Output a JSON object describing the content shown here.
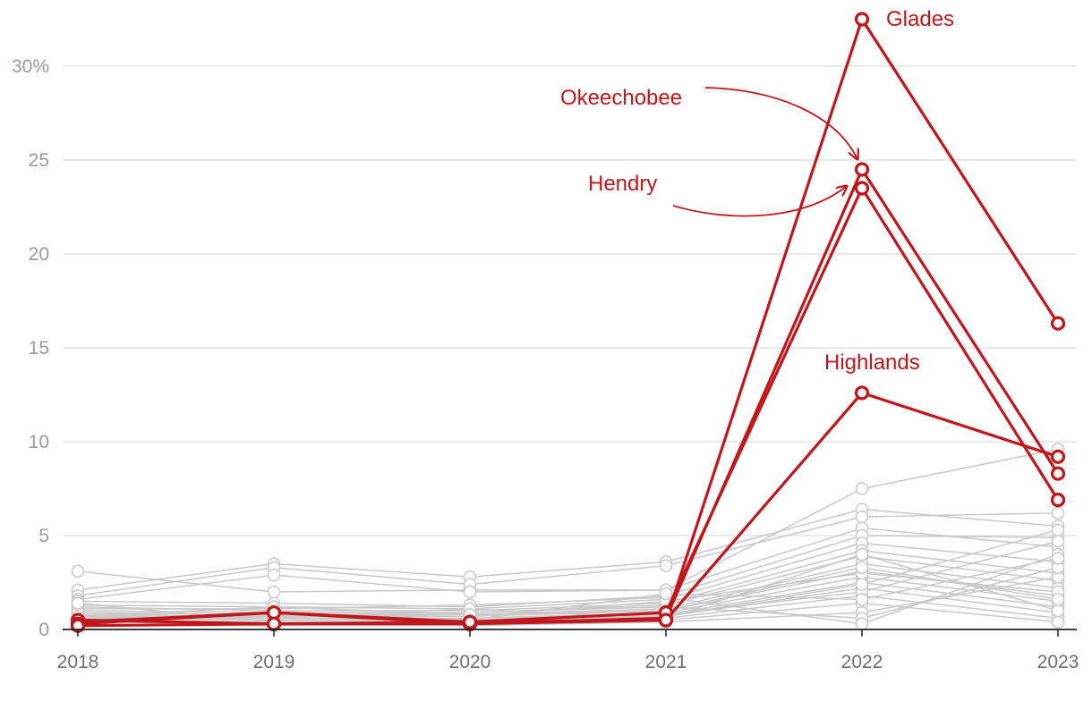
{
  "chart_data": {
    "type": "line",
    "x": [
      "2018",
      "2019",
      "2020",
      "2021",
      "2022",
      "2023"
    ],
    "y_ticks": [
      0,
      5,
      10,
      15,
      20,
      25,
      30
    ],
    "y_top_label": "30%",
    "ylim": [
      0,
      32.5
    ],
    "grid": true,
    "highlight_color": "#c0161c",
    "background_color": "#c8c8c8",
    "highlight_series": [
      {
        "name": "Glades",
        "values": [
          0.4,
          0.9,
          0.3,
          0.5,
          32.5,
          16.3
        ]
      },
      {
        "name": "Okeechobee",
        "values": [
          0.5,
          0.3,
          0.3,
          0.6,
          24.5,
          8.3
        ]
      },
      {
        "name": "Hendry",
        "values": [
          0.3,
          0.9,
          0.4,
          0.9,
          23.5,
          6.9
        ]
      },
      {
        "name": "Highlands",
        "values": [
          0.2,
          0.3,
          0.4,
          0.5,
          12.6,
          9.2
        ]
      }
    ],
    "background_series": [
      [
        3.1,
        2.0,
        2.1,
        2.1,
        7.5,
        9.6
      ],
      [
        2.1,
        3.5,
        2.8,
        3.6,
        6.4,
        5.5
      ],
      [
        1.8,
        3.3,
        2.4,
        3.4,
        6.0,
        6.2
      ],
      [
        1.6,
        2.9,
        2.0,
        2.1,
        5.4,
        4.4
      ],
      [
        1.5,
        1.4,
        1.2,
        1.8,
        5.0,
        4.9
      ],
      [
        1.3,
        1.2,
        1.1,
        1.6,
        4.6,
        3.6
      ],
      [
        1.2,
        1.0,
        1.0,
        1.4,
        4.2,
        3.0
      ],
      [
        1.0,
        0.9,
        0.9,
        1.3,
        3.9,
        2.6
      ],
      [
        0.9,
        0.8,
        0.8,
        1.1,
        3.5,
        2.2
      ],
      [
        0.8,
        0.7,
        0.7,
        1.0,
        3.1,
        1.8
      ],
      [
        0.7,
        0.6,
        0.6,
        0.9,
        2.8,
        1.5
      ],
      [
        0.6,
        0.5,
        0.5,
        0.8,
        2.5,
        1.2
      ],
      [
        0.5,
        0.4,
        0.4,
        0.7,
        2.2,
        0.9
      ],
      [
        0.4,
        0.3,
        0.3,
        0.6,
        1.8,
        0.6
      ],
      [
        0.3,
        0.2,
        0.2,
        0.5,
        1.4,
        0.4
      ],
      [
        0.2,
        0.2,
        0.2,
        0.4,
        0.9,
        2.8
      ],
      [
        0.6,
        0.7,
        0.9,
        1.2,
        0.6,
        3.3
      ],
      [
        1.1,
        1.1,
        1.3,
        1.7,
        0.3,
        4.0
      ],
      [
        0.8,
        0.5,
        0.6,
        0.8,
        2.0,
        4.7
      ],
      [
        0.5,
        0.8,
        0.7,
        1.5,
        3.0,
        2.0
      ],
      [
        0.9,
        0.6,
        1.1,
        0.6,
        4.0,
        1.0
      ],
      [
        0.4,
        0.9,
        0.5,
        1.9,
        1.6,
        3.8
      ],
      [
        1.4,
        0.4,
        0.4,
        0.7,
        2.4,
        5.3
      ],
      [
        0.7,
        1.2,
        0.8,
        1.0,
        3.3,
        1.6
      ]
    ],
    "annotations": [
      {
        "text": "Glades",
        "series": "Glades"
      },
      {
        "text": "Okeechobee",
        "series": "Okeechobee"
      },
      {
        "text": "Hendry",
        "series": "Hendry"
      },
      {
        "text": "Highlands",
        "series": "Highlands"
      }
    ]
  }
}
